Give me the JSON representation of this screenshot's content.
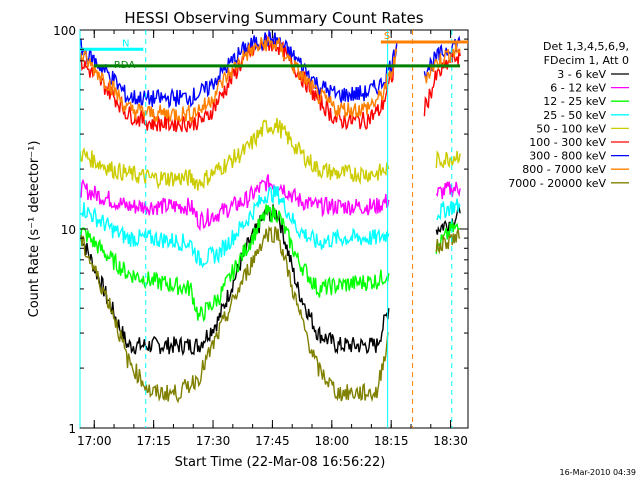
{
  "chart_data": {
    "type": "line",
    "title": "HESSI Observing Summary Count Rates",
    "xlabel": "Start Time (22-Mar-08 16:56:22)",
    "ylabel": "Count Rate (s⁻¹ detector⁻¹)",
    "yscale": "log",
    "ylim": [
      1,
      100
    ],
    "xlim_minutes": [
      0,
      98
    ],
    "x_ticks": [
      {
        "label": "17:00",
        "min": 3.6
      },
      {
        "label": "17:15",
        "min": 18.6
      },
      {
        "label": "17:30",
        "min": 33.6
      },
      {
        "label": "17:45",
        "min": 48.6
      },
      {
        "label": "18:00",
        "min": 63.6
      },
      {
        "label": "18:15",
        "min": 78.6
      },
      {
        "label": "18:30",
        "min": 93.6
      }
    ],
    "y_ticks": [
      {
        "label": "1",
        "value": 1
      },
      {
        "label": "10",
        "value": 10
      },
      {
        "label": "100",
        "value": 100
      }
    ],
    "legend_header": [
      "Det 1,3,4,5,6,9,",
      "FDecim 1, Att 0"
    ],
    "series": [
      {
        "name": "3 - 6 keV",
        "color": "#000000",
        "level": 9.5,
        "points": [
          [
            0,
            9.5
          ],
          [
            8,
            4
          ],
          [
            12,
            2.6
          ],
          [
            18,
            2.6
          ],
          [
            25,
            2.6
          ],
          [
            30,
            2.6
          ],
          [
            35,
            3.5
          ],
          [
            42,
            8
          ],
          [
            47,
            12
          ],
          [
            50,
            12
          ],
          [
            55,
            5
          ],
          [
            60,
            3
          ],
          [
            65,
            2.6
          ],
          [
            75,
            2.6
          ],
          [
            78,
            4
          ],
          [
            85,
            null
          ],
          [
            90,
            10
          ],
          [
            94,
            11
          ],
          [
            96,
            12
          ]
        ]
      },
      {
        "name": "6 - 12 keV",
        "color": "#ff00ff",
        "level": 16,
        "points": [
          [
            0,
            16
          ],
          [
            8,
            14
          ],
          [
            12,
            13
          ],
          [
            18,
            13
          ],
          [
            28,
            13
          ],
          [
            30,
            11
          ],
          [
            35,
            12
          ],
          [
            42,
            14
          ],
          [
            47,
            17
          ],
          [
            50,
            17
          ],
          [
            55,
            14
          ],
          [
            60,
            13
          ],
          [
            65,
            13
          ],
          [
            75,
            13
          ],
          [
            78,
            14
          ],
          [
            85,
            null
          ],
          [
            90,
            15
          ],
          [
            94,
            16
          ],
          [
            96,
            16
          ]
        ]
      },
      {
        "name": "12 - 25 keV",
        "color": "#00ff00",
        "level": 10,
        "points": [
          [
            0,
            10
          ],
          [
            8,
            7
          ],
          [
            12,
            6
          ],
          [
            18,
            5.5
          ],
          [
            28,
            5
          ],
          [
            30,
            3.6
          ],
          [
            35,
            4.5
          ],
          [
            42,
            8
          ],
          [
            47,
            12
          ],
          [
            50,
            12
          ],
          [
            55,
            7
          ],
          [
            60,
            5
          ],
          [
            65,
            5.2
          ],
          [
            75,
            5.5
          ],
          [
            78,
            6
          ],
          [
            85,
            null
          ],
          [
            90,
            8
          ],
          [
            94,
            10
          ],
          [
            96,
            10
          ]
        ]
      },
      {
        "name": "25 - 50 keV",
        "color": "#00ffff",
        "level": 13,
        "points": [
          [
            0,
            13
          ],
          [
            8,
            10
          ],
          [
            12,
            9
          ],
          [
            18,
            9
          ],
          [
            28,
            8.5
          ],
          [
            30,
            7
          ],
          [
            35,
            7.5
          ],
          [
            42,
            11
          ],
          [
            47,
            15
          ],
          [
            50,
            15
          ],
          [
            55,
            10
          ],
          [
            60,
            8.5
          ],
          [
            65,
            9
          ],
          [
            75,
            9
          ],
          [
            78,
            9.5
          ],
          [
            85,
            null
          ],
          [
            90,
            12
          ],
          [
            94,
            13
          ],
          [
            96,
            13
          ]
        ]
      },
      {
        "name": "50 - 100 keV",
        "color": "#cccc00",
        "level": 24,
        "points": [
          [
            0,
            24
          ],
          [
            8,
            20
          ],
          [
            12,
            19
          ],
          [
            18,
            18
          ],
          [
            28,
            18
          ],
          [
            30,
            17
          ],
          [
            35,
            20
          ],
          [
            42,
            25
          ],
          [
            47,
            33
          ],
          [
            50,
            33
          ],
          [
            55,
            25
          ],
          [
            60,
            20
          ],
          [
            65,
            19
          ],
          [
            75,
            19
          ],
          [
            78,
            20
          ],
          [
            85,
            null
          ],
          [
            90,
            22
          ],
          [
            94,
            23
          ],
          [
            96,
            24
          ]
        ]
      },
      {
        "name": "100 - 300 keV",
        "color": "#ff0000",
        "level": 70,
        "points": [
          [
            0,
            70
          ],
          [
            8,
            48
          ],
          [
            12,
            38
          ],
          [
            18,
            34
          ],
          [
            28,
            34
          ],
          [
            32,
            36
          ],
          [
            36,
            48
          ],
          [
            42,
            75
          ],
          [
            47,
            86
          ],
          [
            50,
            84
          ],
          [
            55,
            62
          ],
          [
            60,
            45
          ],
          [
            65,
            35
          ],
          [
            72,
            35
          ],
          [
            76,
            40
          ],
          [
            79,
            60
          ],
          [
            80,
            84
          ],
          [
            85,
            null
          ],
          [
            87,
            40
          ],
          [
            90,
            58
          ],
          [
            94,
            72
          ],
          [
            96,
            74
          ]
        ]
      },
      {
        "name": "300 - 800 keV",
        "color": "#0000ff",
        "level": 82,
        "points": [
          [
            0,
            82
          ],
          [
            8,
            58
          ],
          [
            12,
            46
          ],
          [
            18,
            45
          ],
          [
            28,
            46
          ],
          [
            32,
            50
          ],
          [
            36,
            62
          ],
          [
            42,
            82
          ],
          [
            47,
            90
          ],
          [
            50,
            88
          ],
          [
            55,
            70
          ],
          [
            60,
            53
          ],
          [
            65,
            47
          ],
          [
            72,
            48
          ],
          [
            76,
            53
          ],
          [
            79,
            70
          ],
          [
            80,
            86
          ],
          [
            85,
            null
          ],
          [
            87,
            62
          ],
          [
            90,
            72
          ],
          [
            94,
            84
          ],
          [
            96,
            86
          ]
        ]
      },
      {
        "name": "800 - 7000 keV",
        "color": "#ff8000",
        "level": 76,
        "points": [
          [
            0,
            76
          ],
          [
            8,
            52
          ],
          [
            12,
            40
          ],
          [
            18,
            38
          ],
          [
            28,
            38
          ],
          [
            32,
            42
          ],
          [
            36,
            55
          ],
          [
            42,
            76
          ],
          [
            47,
            86
          ],
          [
            50,
            84
          ],
          [
            55,
            62
          ],
          [
            60,
            47
          ],
          [
            65,
            40
          ],
          [
            72,
            40
          ],
          [
            76,
            46
          ],
          [
            79,
            64
          ],
          [
            80,
            78
          ],
          [
            85,
            null
          ],
          [
            87,
            58
          ],
          [
            90,
            68
          ],
          [
            94,
            78
          ],
          [
            96,
            80
          ]
        ]
      },
      {
        "name": "7000 - 20000 keV",
        "color": "#808000",
        "level": 9,
        "points": [
          [
            0,
            9
          ],
          [
            8,
            4
          ],
          [
            12,
            2.2
          ],
          [
            18,
            1.5
          ],
          [
            25,
            1.5
          ],
          [
            30,
            1.8
          ],
          [
            35,
            3
          ],
          [
            42,
            6
          ],
          [
            47,
            9.5
          ],
          [
            50,
            9.5
          ],
          [
            55,
            4
          ],
          [
            60,
            2
          ],
          [
            65,
            1.5
          ],
          [
            75,
            1.5
          ],
          [
            78,
            3
          ],
          [
            85,
            null
          ],
          [
            90,
            8
          ],
          [
            94,
            9
          ],
          [
            96,
            9
          ]
        ]
      }
    ],
    "overlays": [
      {
        "label": "N",
        "color": "#00ffff",
        "type": "flag",
        "value": 80,
        "from_min": 0,
        "to_min": 16
      },
      {
        "label": "RDA",
        "color": "#008000",
        "type": "flag",
        "value": 66,
        "from_min": 3.5,
        "to_min": 96
      },
      {
        "label": "S",
        "color": "#ff8000",
        "type": "flag",
        "value": 87,
        "from_min": 76,
        "to_min": 98
      }
    ],
    "vlines": [
      {
        "min": 0.0,
        "color": "#00ffff",
        "style": "solid"
      },
      {
        "min": 16.6,
        "color": "#00ffff",
        "style": "dash"
      },
      {
        "min": 77.7,
        "color": "#00ffff",
        "style": "solid"
      },
      {
        "min": 84.0,
        "color": "#ff8000",
        "style": "dash"
      },
      {
        "min": 93.9,
        "color": "#00ffff",
        "style": "dash"
      }
    ]
  },
  "footer": {
    "timestamp": "16-Mar-2010 04:39"
  }
}
